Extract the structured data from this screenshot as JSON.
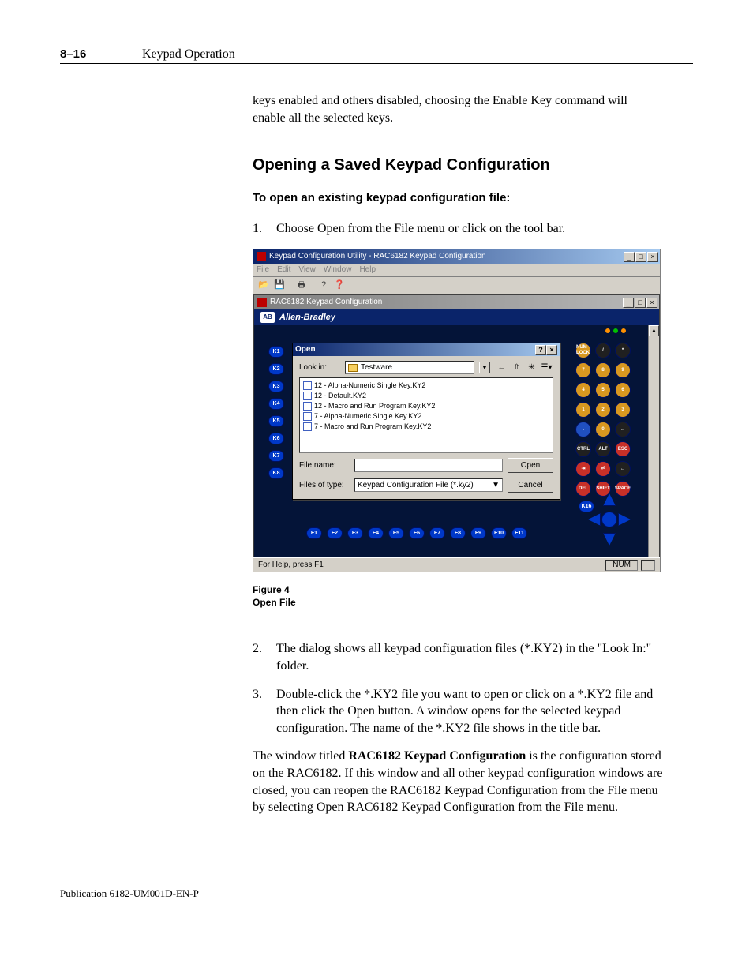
{
  "page_number": "8–16",
  "chapter_title": "Keypad Operation",
  "intro_para": "keys enabled and others disabled, choosing the Enable Key command will enable all the selected keys.",
  "section_heading": "Opening a Saved Keypad Configuration",
  "subheading": "To open an existing keypad configuration file:",
  "step1": "Choose Open from the File menu or click on the tool bar.",
  "figure_caption_line1": "Figure 4",
  "figure_caption_line2": "Open File",
  "step2": "The dialog shows all keypad configuration files (*.KY2) in the \"Look In:\" folder.",
  "step3": "Double-click the *.KY2 file you want to open or click on a *.KY2 file and then click the Open button.  A window opens for the selected keypad configuration.  The name of the *.KY2 file shows in the title bar.",
  "closing_para_pre": "The window titled ",
  "closing_para_bold": "RAC6182 Keypad Configuration",
  "closing_para_post": " is the configuration stored on the RAC6182.  If this window and all other keypad configuration windows are closed, you can reopen the RAC6182 Keypad Configuration from the File menu by selecting Open RAC6182 Keypad Configuration from the File menu.",
  "publication": "Publication 6182-UM001D-EN-P",
  "screenshot": {
    "outer_title": "Keypad Configuration Utility - RAC6182 Keypad Configuration",
    "menus": [
      "File",
      "Edit",
      "View",
      "Window",
      "Help"
    ],
    "child_title": "RAC6182 Keypad Configuration",
    "brand": "Allen-Bradley",
    "brand_logo": "AB",
    "statusbar_help": "For Help, press F1",
    "statusbar_num": "NUM",
    "left_keys": [
      "K1",
      "K2",
      "K3",
      "K4",
      "K5",
      "K6",
      "K7",
      "K8"
    ],
    "bottom_keys": [
      "F1",
      "F2",
      "F3",
      "F4",
      "F5",
      "F6",
      "F7",
      "F8",
      "F9",
      "F10",
      "F11"
    ],
    "k16": "K16",
    "numpad": [
      {
        "t": "NUM\nLOCK",
        "c": "#d89820"
      },
      {
        "t": "/",
        "c": "#202020"
      },
      {
        "t": "*",
        "c": "#202020"
      },
      {
        "t": "7",
        "c": "#d89820"
      },
      {
        "t": "8",
        "c": "#d89820"
      },
      {
        "t": "9",
        "c": "#d89820"
      },
      {
        "t": "4",
        "c": "#d89820"
      },
      {
        "t": "5",
        "c": "#d89820"
      },
      {
        "t": "6",
        "c": "#d89820"
      },
      {
        "t": "1",
        "c": "#d89820"
      },
      {
        "t": "2",
        "c": "#d89820"
      },
      {
        "t": "3",
        "c": "#d89820"
      },
      {
        "t": ".",
        "c": "#2050c0"
      },
      {
        "t": "0",
        "c": "#d89820"
      },
      {
        "t": "←",
        "c": "#202020"
      },
      {
        "t": "CTRL",
        "c": "#202020"
      },
      {
        "t": "ALT",
        "c": "#202020"
      },
      {
        "t": "ESC",
        "c": "#c83028"
      },
      {
        "t": "⇥",
        "c": "#c83028"
      },
      {
        "t": "⏎",
        "c": "#c83028"
      },
      {
        "t": "←",
        "c": "#202020"
      },
      {
        "t": "DEL",
        "c": "#c83028"
      },
      {
        "t": "SHIFT",
        "c": "#c83028"
      },
      {
        "t": "SPACE",
        "c": "#c83028"
      }
    ],
    "leds": [
      "#ff9000",
      "#00c000",
      "#ff9000"
    ],
    "open_dialog": {
      "title": "Open",
      "lookin_label": "Look in:",
      "lookin_value": "Testware",
      "files": [
        "12 - Alpha-Numeric Single Key.KY2",
        "12 - Default.KY2",
        "12 - Macro and Run Program Key.KY2",
        "7 - Alpha-Numeric Single Key.KY2",
        "7 - Macro and Run Program Key.KY2"
      ],
      "filename_label": "File name:",
      "filename_value": "",
      "filetype_label": "Files of type:",
      "filetype_value": "Keypad Configuration File (*.ky2)",
      "open_btn": "Open",
      "cancel_btn": "Cancel"
    }
  }
}
